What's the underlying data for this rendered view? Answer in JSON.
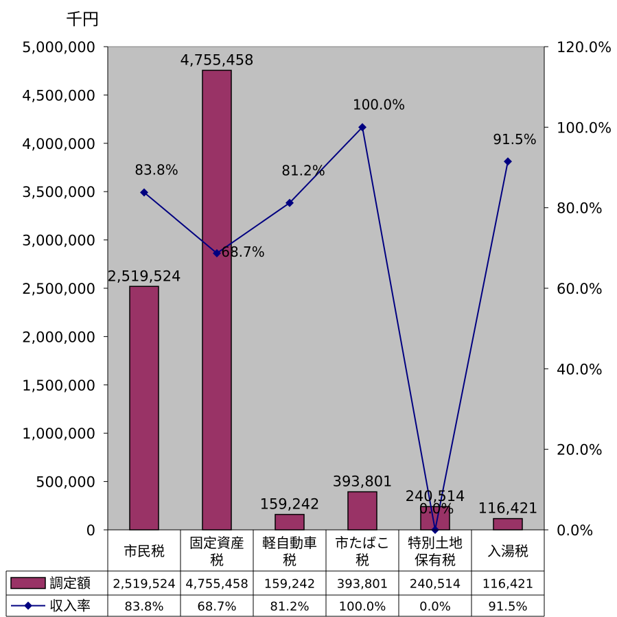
{
  "chart_data": {
    "type": "bar+line",
    "unit_label": "千円",
    "categories": [
      [
        "市民税"
      ],
      [
        "固定資産",
        "税"
      ],
      [
        "軽自動車",
        "税"
      ],
      [
        "市たばこ",
        "税"
      ],
      [
        "特別土地",
        "保有税"
      ],
      [
        "入湯税"
      ]
    ],
    "series": [
      {
        "name": "調定額",
        "type": "bar",
        "axis": "left",
        "color": "#993366",
        "values": [
          2519524,
          4755458,
          159242,
          393801,
          240514,
          116421
        ],
        "labels": [
          "2,519,524",
          "4,755,458",
          "159,242",
          "393,801",
          "240,514",
          "116,421"
        ]
      },
      {
        "name": "収入率",
        "type": "line",
        "axis": "right",
        "color": "#000080",
        "marker": "diamond",
        "values": [
          83.8,
          68.7,
          81.2,
          100.0,
          0.0,
          91.5
        ],
        "labels": [
          "83.8%",
          "68.7%",
          "81.2%",
          "100.0%",
          "0.0%",
          "91.5%"
        ]
      }
    ],
    "left_axis": {
      "min": 0,
      "max": 5000000,
      "step": 500000,
      "ticks": [
        "0",
        "500,000",
        "1,000,000",
        "1,500,000",
        "2,000,000",
        "2,500,000",
        "3,000,000",
        "3,500,000",
        "4,000,000",
        "4,500,000",
        "5,000,000"
      ]
    },
    "right_axis": {
      "min": 0,
      "max": 120,
      "step": 20,
      "ticks": [
        "0.0%",
        "20.0%",
        "40.0%",
        "60.0%",
        "80.0%",
        "100.0%",
        "120.0%"
      ]
    },
    "plot_background": "#c0c0c0",
    "grid": false,
    "legend": "data-table-below"
  }
}
